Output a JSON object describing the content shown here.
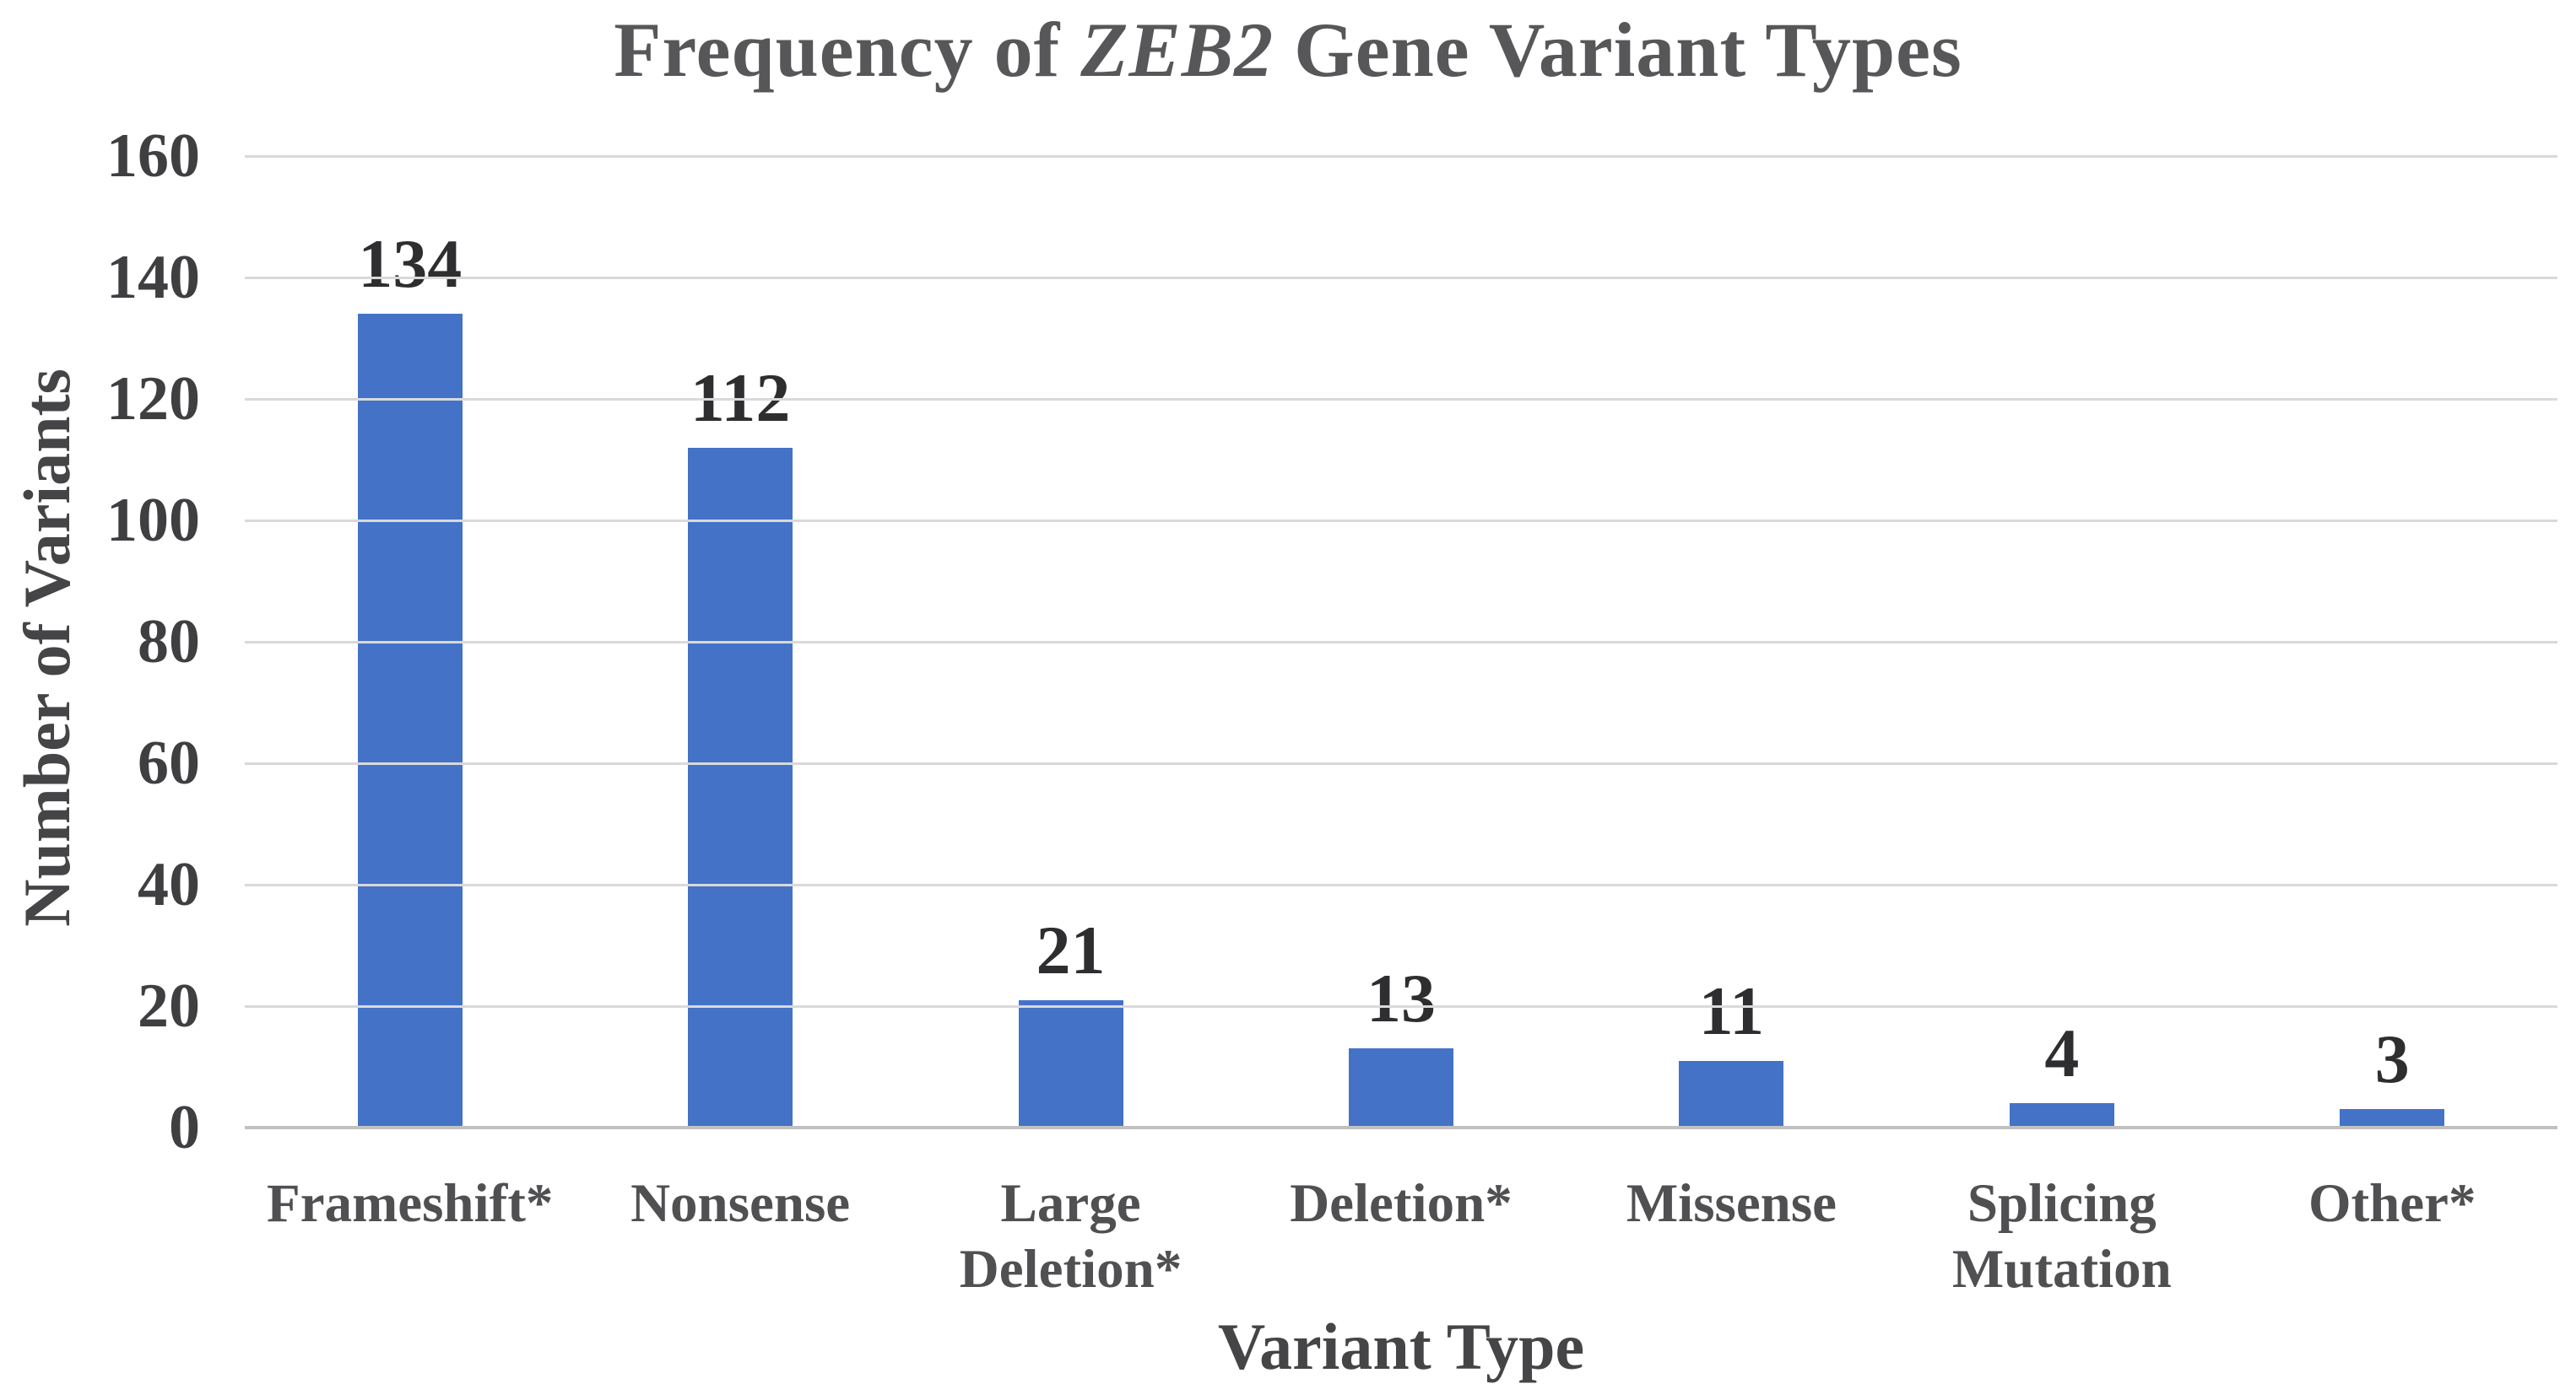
{
  "chart_data": {
    "type": "bar",
    "title_plain": "Frequency of ZEB2 Gene Variant Types",
    "title_parts": [
      {
        "text": "Frequency of ",
        "italic": false
      },
      {
        "text": "ZEB2",
        "italic": true
      },
      {
        "text": " Gene Variant Types",
        "italic": false
      }
    ],
    "categories": [
      "Frameshift*",
      "Nonsense",
      "Large Deletion*",
      "Deletion*",
      "Missense",
      "Splicing Mutation",
      "Other*"
    ],
    "category_lines": [
      [
        "Frameshift*"
      ],
      [
        "Nonsense"
      ],
      [
        "Large",
        "Deletion*"
      ],
      [
        "Deletion*"
      ],
      [
        "Missense"
      ],
      [
        "Splicing",
        "Mutation"
      ],
      [
        "Other*"
      ]
    ],
    "values": [
      134,
      112,
      21,
      13,
      11,
      4,
      3
    ],
    "xlabel": "Variant Type",
    "ylabel": "Number of Variants",
    "ylim": [
      0,
      160
    ],
    "ytick_step": 20,
    "yticks": [
      0,
      20,
      40,
      60,
      80,
      100,
      120,
      140,
      160
    ],
    "grid": "horizontal",
    "legend": "none",
    "colors": {
      "bar": "#4472c6",
      "gridline": "#d9d9d9",
      "axis_line": "#c1c1c1",
      "title": "#57575a",
      "value_label": "#2e2e30",
      "tick_label": "#3f3f41",
      "category_label": "#505052",
      "axis_title": "#454547"
    }
  }
}
